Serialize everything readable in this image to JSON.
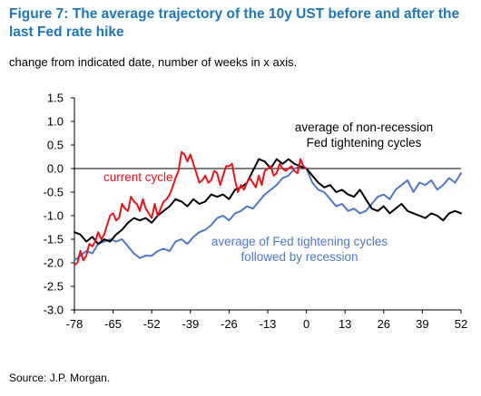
{
  "title": "Figure 7: The average trajectory of the 10y UST before and after the last Fed rate hike",
  "subtitle": "change from indicated date, number of weeks in x axis.",
  "source": "Source: J.P. Morgan.",
  "colors": {
    "current": "#e8131b",
    "nonrecession": "#000000",
    "recession": "#4f79c4",
    "title": "#1f76b4"
  },
  "chart_data": {
    "type": "line",
    "xlim": [
      -78,
      52
    ],
    "ylim": [
      -3.0,
      1.5
    ],
    "x_ticks": [
      -78,
      -65,
      -52,
      -39,
      -26,
      -13,
      0,
      13,
      26,
      39,
      52
    ],
    "y_ticks": [
      "1.5",
      "1.0",
      "0.5",
      "0.0",
      "-0.5",
      "-1.0",
      "-1.5",
      "-2.0",
      "-2.5",
      "-3.0"
    ],
    "grid": false,
    "annotations": [
      {
        "lines": [
          "average of non-recession",
          "Fed tightening cycles"
        ],
        "color": "#000000"
      },
      {
        "lines": [
          "current cycle"
        ],
        "color": "#e8131b"
      },
      {
        "lines": [
          "average of Fed tightening cycles",
          "followed by recession"
        ],
        "color": "#4f79c4"
      }
    ],
    "series": [
      {
        "key": "current",
        "x": [
          -78,
          -77,
          -76,
          -75,
          -74,
          -73,
          -72,
          -71,
          -70,
          -69,
          -68,
          -67,
          -66,
          -65,
          -64,
          -63,
          -62,
          -61,
          -60,
          -59,
          -58,
          -57,
          -56,
          -55,
          -54,
          -53,
          -52,
          -51,
          -50,
          -49,
          -48,
          -47,
          -46,
          -45,
          -44,
          -43,
          -42,
          -41,
          -40,
          -39,
          -38,
          -37,
          -36,
          -35,
          -34,
          -33,
          -32,
          -31,
          -30,
          -29,
          -28,
          -27,
          -26,
          -25,
          -24,
          -23,
          -22,
          -21,
          -20,
          -19,
          -18,
          -17,
          -16,
          -15,
          -14,
          -13,
          -12,
          -11,
          -10,
          -9,
          -8,
          -7,
          -6,
          -5,
          -4,
          -3,
          -2,
          -1,
          0
        ],
        "values": [
          -2.05,
          -2.0,
          -1.75,
          -1.95,
          -1.85,
          -1.6,
          -1.65,
          -1.55,
          -1.35,
          -1.5,
          -1.4,
          -1.2,
          -1.0,
          -0.95,
          -1.1,
          -1.05,
          -0.75,
          -0.85,
          -0.9,
          -0.6,
          -0.7,
          -0.75,
          -0.9,
          -0.65,
          -0.85,
          -0.95,
          -1.05,
          -0.75,
          -1.0,
          -0.85,
          -0.7,
          -0.65,
          -0.55,
          -0.4,
          -0.2,
          -0.05,
          0.35,
          0.3,
          0.15,
          0.3,
          0.1,
          -0.1,
          -0.3,
          -0.25,
          -0.15,
          -0.3,
          -0.25,
          -0.05,
          -0.1,
          -0.35,
          -0.15,
          0.05,
          0.05,
          0.1,
          -0.25,
          -0.5,
          -0.35,
          -0.45,
          -0.3,
          -0.2,
          -0.3,
          -0.4,
          -0.15,
          -0.35,
          -0.05,
          0.0,
          0.05,
          -0.15,
          -0.1,
          0.1,
          0.0,
          -0.05,
          0.0,
          0.05,
          -0.05,
          -0.1,
          0.2,
          0.05,
          0.0
        ]
      },
      {
        "key": "nonrecession",
        "x": [
          -78,
          -76,
          -74,
          -72,
          -70,
          -68,
          -66,
          -64,
          -62,
          -60,
          -58,
          -56,
          -54,
          -52,
          -50,
          -48,
          -46,
          -44,
          -42,
          -40,
          -38,
          -36,
          -34,
          -32,
          -30,
          -28,
          -26,
          -24,
          -22,
          -20,
          -18,
          -16,
          -14,
          -12,
          -10,
          -8,
          -6,
          -4,
          -2,
          0,
          2,
          4,
          6,
          8,
          10,
          12,
          14,
          16,
          18,
          20,
          22,
          24,
          26,
          28,
          30,
          32,
          34,
          36,
          38,
          40,
          42,
          44,
          46,
          48,
          50,
          52
        ],
        "values": [
          -1.35,
          -1.4,
          -1.55,
          -1.45,
          -1.6,
          -1.5,
          -1.55,
          -1.4,
          -1.3,
          -1.15,
          -1.05,
          -1.1,
          -1.05,
          -1.15,
          -1.0,
          -0.9,
          -0.8,
          -0.65,
          -0.7,
          -0.8,
          -0.65,
          -0.75,
          -0.7,
          -0.55,
          -0.6,
          -0.55,
          -0.65,
          -0.45,
          -0.4,
          -0.3,
          -0.05,
          0.2,
          0.15,
          0.0,
          0.2,
          0.1,
          0.2,
          0.1,
          0.05,
          0.0,
          -0.15,
          -0.3,
          -0.4,
          -0.35,
          -0.5,
          -0.45,
          -0.55,
          -0.6,
          -0.45,
          -0.65,
          -0.85,
          -0.9,
          -0.8,
          -0.95,
          -0.85,
          -0.75,
          -0.9,
          -0.95,
          -1.0,
          -1.05,
          -0.95,
          -1.0,
          -1.1,
          -0.95,
          -0.9,
          -0.95
        ]
      },
      {
        "key": "recession",
        "x": [
          -78,
          -76,
          -74,
          -72,
          -70,
          -68,
          -66,
          -64,
          -62,
          -60,
          -58,
          -56,
          -54,
          -52,
          -50,
          -48,
          -46,
          -44,
          -42,
          -40,
          -38,
          -36,
          -34,
          -32,
          -30,
          -28,
          -26,
          -24,
          -22,
          -20,
          -18,
          -16,
          -14,
          -12,
          -10,
          -8,
          -6,
          -4,
          -2,
          0,
          2,
          4,
          6,
          8,
          10,
          12,
          14,
          16,
          18,
          20,
          22,
          24,
          26,
          28,
          30,
          32,
          34,
          36,
          38,
          40,
          42,
          44,
          46,
          48,
          50,
          52
        ],
        "values": [
          -1.95,
          -1.85,
          -1.75,
          -1.8,
          -1.6,
          -1.55,
          -1.5,
          -1.55,
          -1.5,
          -1.65,
          -1.8,
          -1.9,
          -1.85,
          -1.85,
          -1.75,
          -1.7,
          -1.75,
          -1.55,
          -1.5,
          -1.6,
          -1.45,
          -1.35,
          -1.3,
          -1.2,
          -1.05,
          -1.0,
          -1.1,
          -0.95,
          -0.9,
          -0.8,
          -0.85,
          -0.7,
          -0.55,
          -0.45,
          -0.35,
          -0.2,
          -0.15,
          0.0,
          0.05,
          0.0,
          -0.3,
          -0.45,
          -0.5,
          -0.65,
          -0.8,
          -0.75,
          -0.9,
          -0.85,
          -0.95,
          -0.9,
          -0.75,
          -0.6,
          -0.55,
          -0.65,
          -0.45,
          -0.35,
          -0.25,
          -0.5,
          -0.3,
          -0.35,
          -0.25,
          -0.45,
          -0.35,
          -0.2,
          -0.3,
          -0.1
        ]
      }
    ]
  }
}
